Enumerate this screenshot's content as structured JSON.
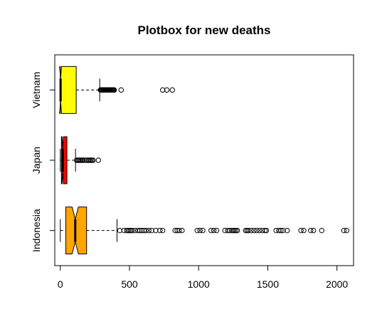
{
  "chart_data": {
    "type": "boxplot",
    "orientation": "horizontal",
    "title": "Plotbox for new deaths",
    "xlabel": "",
    "ylabel": "",
    "xlim": [
      -40,
      2120
    ],
    "x_ticks": [
      0,
      500,
      1000,
      1500,
      2000
    ],
    "x_tick_labels": [
      "0",
      "500",
      "1000",
      "1500",
      "2000"
    ],
    "notched": true,
    "grid": false,
    "legend": "none",
    "categories": [
      "Indonesia",
      "Japan",
      "Vietnam"
    ],
    "series": [
      {
        "category": "Indonesia",
        "color": "#FFA500",
        "whisker_low": 0,
        "q1": 40,
        "median": 108,
        "q3": 190,
        "whisker_high": 410,
        "notch": [
          85,
          131
        ],
        "outliers": [
          430,
          460,
          480,
          490,
          500,
          510,
          520,
          540,
          560,
          575,
          590,
          605,
          620,
          640,
          660,
          690,
          720,
          740,
          830,
          845,
          860,
          880,
          990,
          1010,
          1030,
          1090,
          1110,
          1130,
          1190,
          1210,
          1225,
          1240,
          1250,
          1260,
          1270,
          1280,
          1340,
          1350,
          1360,
          1380,
          1400,
          1420,
          1440,
          1460,
          1480,
          1490,
          1560,
          1580,
          1595,
          1610,
          1640,
          1740,
          1760,
          1810,
          1830,
          1890,
          2050,
          2070
        ]
      },
      {
        "category": "Japan",
        "color": "#FF0000",
        "whisker_low": 0,
        "q1": 8,
        "median": 18,
        "q3": 48,
        "whisker_high": 110,
        "notch": [
          13,
          23
        ],
        "outliers": [
          118,
          128,
          135,
          142,
          150,
          158,
          165,
          180,
          195,
          205,
          212,
          220,
          228,
          236,
          275
        ]
      },
      {
        "category": "Vietnam",
        "color": "#FFFF00",
        "whisker_low": 0,
        "q1": 0,
        "median": 2,
        "q3": 115,
        "whisker_high": 285,
        "notch": [
          -5,
          9
        ],
        "outliers": [
          290,
          295,
          300,
          305,
          310,
          315,
          320,
          325,
          330,
          335,
          340,
          345,
          350,
          355,
          360,
          365,
          370,
          375,
          380,
          385,
          390,
          440,
          740,
          770,
          810
        ]
      }
    ]
  }
}
